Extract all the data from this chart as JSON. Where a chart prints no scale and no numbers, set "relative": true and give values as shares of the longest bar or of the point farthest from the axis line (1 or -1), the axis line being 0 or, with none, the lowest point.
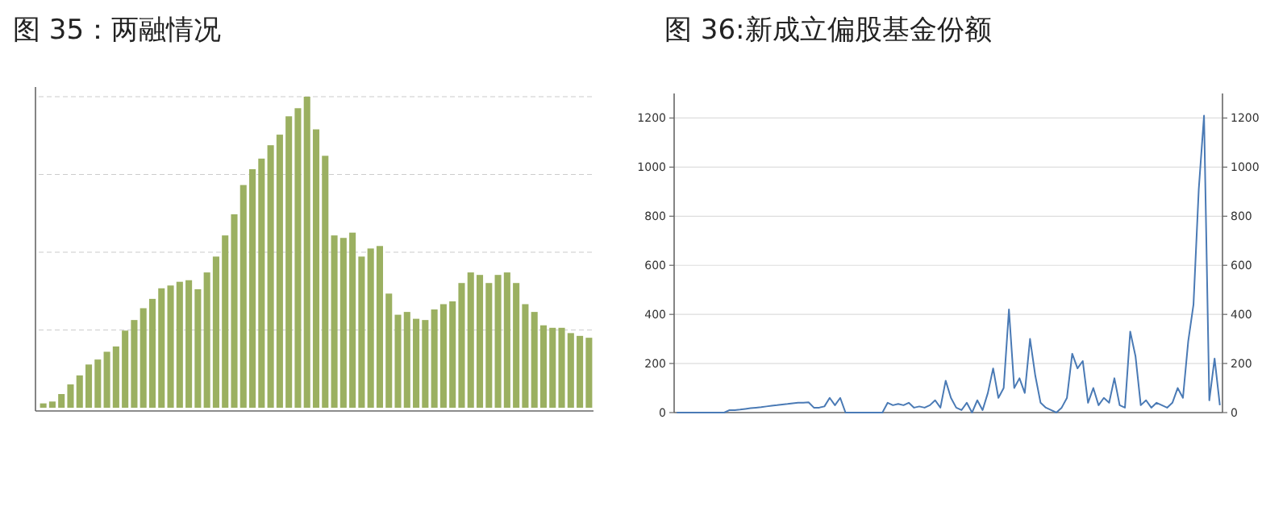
{
  "chart_data": [
    {
      "type": "bar",
      "title": "图 35：两融情况",
      "relative": true,
      "grid": "y",
      "color": "#9bb061",
      "categories": [
        null,
        null,
        null,
        null,
        null,
        null,
        null,
        null,
        null,
        null,
        null,
        null,
        null,
        null,
        null,
        null,
        null,
        null,
        null,
        null,
        null,
        null,
        null,
        null,
        null,
        null,
        null,
        null,
        null,
        null,
        null,
        null,
        null,
        null,
        null,
        null,
        null,
        null,
        null,
        null,
        null,
        null,
        null,
        null,
        null,
        null,
        null,
        null,
        null,
        null,
        null,
        null,
        null,
        null,
        null,
        null,
        null,
        null,
        null,
        null,
        null
      ],
      "values": [
        0.014,
        0.02,
        0.044,
        0.075,
        0.104,
        0.139,
        0.155,
        0.18,
        0.197,
        0.248,
        0.282,
        0.32,
        0.35,
        0.384,
        0.393,
        0.405,
        0.41,
        0.381,
        0.435,
        0.486,
        0.554,
        0.622,
        0.716,
        0.767,
        0.801,
        0.844,
        0.878,
        0.937,
        0.963,
        1,
        0.895,
        0.81,
        0.554,
        0.546,
        0.563,
        0.486,
        0.512,
        0.52,
        0.367,
        0.299,
        0.308,
        0.286,
        0.282,
        0.316,
        0.333,
        0.342,
        0.401,
        0.435,
        0.427,
        0.401,
        0.427,
        0.435,
        0.401,
        0.333,
        0.308,
        0.265,
        0.257,
        0.257,
        0.24,
        0.231,
        0.225
      ]
    },
    {
      "type": "line",
      "title": "图 36:新成立偏股基金份额",
      "grid": "y",
      "color": "#4a7ab5",
      "ylim": [
        0,
        1300
      ],
      "yticks": [
        0,
        200,
        400,
        600,
        800,
        1000,
        1200
      ],
      "y2lim": [
        0,
        1300
      ],
      "y2ticks": [
        0,
        200,
        400,
        600,
        800,
        1000,
        1200
      ],
      "categories": [
        null,
        null,
        null,
        null,
        null,
        null,
        null,
        null,
        null,
        null,
        null,
        null,
        null,
        null,
        null,
        null,
        null,
        null,
        null,
        null,
        null,
        null,
        null,
        null,
        null,
        null,
        null,
        null,
        null,
        null,
        null,
        null,
        null,
        null,
        null,
        null,
        null,
        null,
        null,
        null,
        null,
        null,
        null,
        null,
        null,
        null,
        null,
        null,
        null,
        null,
        null,
        null,
        null,
        null,
        null,
        null,
        null,
        null,
        null,
        null,
        null,
        null,
        null,
        null,
        null,
        null,
        null,
        null,
        null,
        null,
        null,
        null,
        null,
        null,
        null,
        null,
        null,
        null,
        null,
        null,
        null,
        null,
        null,
        null,
        null,
        null,
        null,
        null,
        null,
        null,
        null,
        null,
        null,
        null,
        null,
        null,
        null,
        null,
        null,
        null,
        null,
        null,
        null,
        null
      ],
      "values": [
        0,
        0,
        0,
        0,
        0,
        0,
        0,
        0,
        0,
        0,
        10,
        10,
        12,
        15,
        18,
        20,
        22,
        25,
        28,
        30,
        33,
        35,
        38,
        40,
        40,
        42,
        20,
        20,
        25,
        60,
        30,
        60,
        0,
        0,
        0,
        0,
        0,
        0,
        0,
        0,
        40,
        30,
        35,
        30,
        40,
        20,
        25,
        20,
        30,
        50,
        20,
        130,
        60,
        20,
        10,
        40,
        0,
        50,
        10,
        80,
        180,
        60,
        100,
        420,
        100,
        140,
        80,
        300,
        150,
        40,
        20,
        10,
        0,
        20,
        60,
        240,
        180,
        210,
        40,
        100,
        30,
        60,
        40,
        140,
        30,
        20,
        330,
        230,
        30,
        50,
        20,
        40,
        30,
        20,
        40,
        100,
        60,
        290,
        440,
        910,
        1210,
        50,
        220,
        30
      ]
    }
  ]
}
